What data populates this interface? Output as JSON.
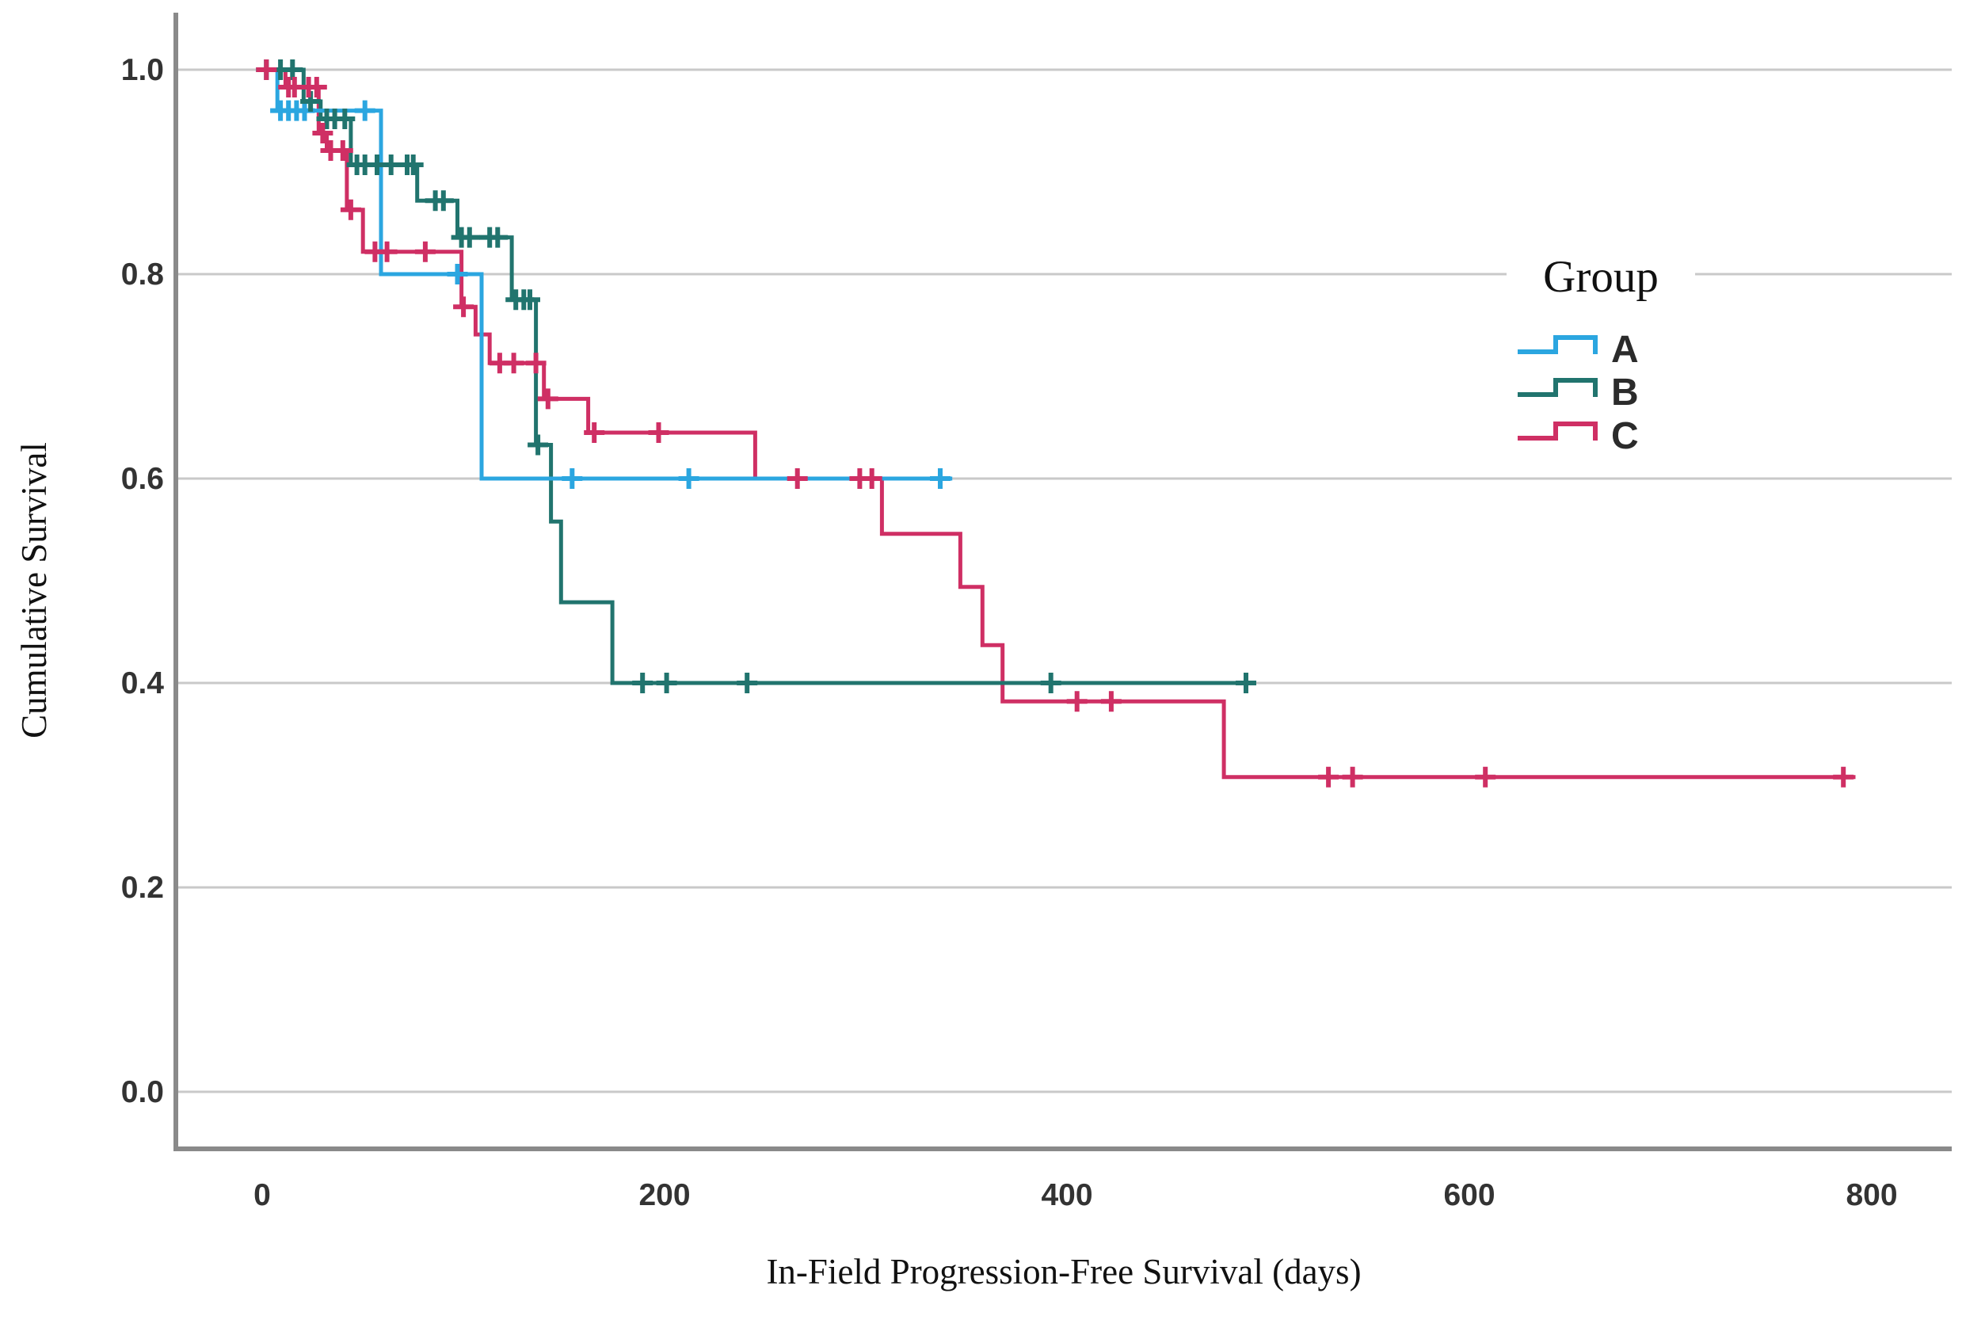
{
  "chart_data": {
    "type": "line",
    "subtype": "kaplan-meier-step",
    "title": "",
    "xlabel": "In-Field Progression-Free Survival (days)",
    "ylabel": "Cumulative Survival",
    "x_ticks": [
      0,
      200,
      400,
      600,
      800
    ],
    "x_tick_labels": [
      "0",
      "200",
      "400",
      "600",
      "800"
    ],
    "y_ticks": [
      1.0,
      0.8,
      0.6,
      0.4,
      0.2,
      0.0
    ],
    "y_tick_labels": [
      "1.0",
      "0.8",
      "0.6",
      "0.4",
      "0.2",
      "0.0"
    ],
    "xlim": [
      -43,
      843
    ],
    "ylim": [
      -0.0558,
      1.0543
    ],
    "grid": true,
    "grid_color": "#c9c9c9",
    "axis_color": "#8a8a8a",
    "censor_marker": "plus",
    "legend": {
      "title": "Group",
      "position": "right-inside"
    },
    "series": [
      {
        "name": "A",
        "color": "#2ba6e0",
        "steps": [
          [
            0,
            1.0
          ],
          [
            7.5,
            0.96
          ],
          [
            59,
            0.8
          ],
          [
            109,
            0.6
          ]
        ],
        "end": 343,
        "censors": [
          [
            2,
            1.0
          ],
          [
            9,
            0.96
          ],
          [
            13,
            0.96
          ],
          [
            17,
            0.96
          ],
          [
            21,
            0.96
          ],
          [
            51,
            0.96
          ],
          [
            97,
            0.8
          ],
          [
            154,
            0.6
          ],
          [
            212,
            0.6
          ],
          [
            337,
            0.6
          ]
        ]
      },
      {
        "name": "B",
        "color": "#21746e",
        "steps": [
          [
            0,
            1.0
          ],
          [
            20.5,
            0.969
          ],
          [
            29,
            0.952
          ],
          [
            44,
            0.907
          ],
          [
            77,
            0.872
          ],
          [
            97,
            0.836
          ],
          [
            124,
            0.775
          ],
          [
            136,
            0.633
          ],
          [
            143.5,
            0.558
          ],
          [
            148.5,
            0.479
          ],
          [
            174,
            0.4
          ]
        ],
        "end": 494,
        "censors": [
          [
            2,
            1.0
          ],
          [
            9,
            1.0
          ],
          [
            15,
            1.0
          ],
          [
            24,
            0.969
          ],
          [
            32,
            0.952
          ],
          [
            36,
            0.952
          ],
          [
            41,
            0.952
          ],
          [
            47,
            0.907
          ],
          [
            51,
            0.907
          ],
          [
            57,
            0.907
          ],
          [
            64,
            0.907
          ],
          [
            72,
            0.907
          ],
          [
            75,
            0.907
          ],
          [
            86,
            0.872
          ],
          [
            90,
            0.872
          ],
          [
            99,
            0.836
          ],
          [
            103,
            0.836
          ],
          [
            113,
            0.836
          ],
          [
            117,
            0.836
          ],
          [
            126,
            0.775
          ],
          [
            130,
            0.775
          ],
          [
            133,
            0.775
          ],
          [
            137,
            0.633
          ],
          [
            189,
            0.4
          ],
          [
            201,
            0.4
          ],
          [
            241,
            0.4
          ],
          [
            392,
            0.4
          ],
          [
            489,
            0.4
          ]
        ]
      },
      {
        "name": "C",
        "color": "#cf2f64",
        "steps": [
          [
            0,
            1.0
          ],
          [
            11.5,
            0.983
          ],
          [
            28,
            0.938
          ],
          [
            32,
            0.921
          ],
          [
            42,
            0.863
          ],
          [
            50,
            0.822
          ],
          [
            99,
            0.768
          ],
          [
            106,
            0.741
          ],
          [
            113,
            0.713
          ],
          [
            140,
            0.678
          ],
          [
            162,
            0.645
          ],
          [
            245,
            0.6
          ],
          [
            308,
            0.546
          ],
          [
            347,
            0.494
          ],
          [
            358,
            0.437
          ],
          [
            368,
            0.382
          ],
          [
            478,
            0.308
          ]
        ],
        "end": 792,
        "censors": [
          [
            2,
            1.0
          ],
          [
            13,
            0.983
          ],
          [
            16,
            0.983
          ],
          [
            23,
            0.983
          ],
          [
            27,
            0.983
          ],
          [
            30,
            0.938
          ],
          [
            34,
            0.921
          ],
          [
            40,
            0.921
          ],
          [
            44,
            0.863
          ],
          [
            56,
            0.822
          ],
          [
            62,
            0.822
          ],
          [
            81,
            0.822
          ],
          [
            100,
            0.768
          ],
          [
            118,
            0.713
          ],
          [
            125,
            0.713
          ],
          [
            136,
            0.713
          ],
          [
            142,
            0.678
          ],
          [
            165,
            0.645
          ],
          [
            197,
            0.645
          ],
          [
            266,
            0.6
          ],
          [
            297,
            0.6
          ],
          [
            303,
            0.6
          ],
          [
            405,
            0.382
          ],
          [
            422,
            0.382
          ],
          [
            530,
            0.308
          ],
          [
            542,
            0.308
          ],
          [
            608,
            0.308
          ],
          [
            786,
            0.308
          ]
        ]
      }
    ]
  }
}
